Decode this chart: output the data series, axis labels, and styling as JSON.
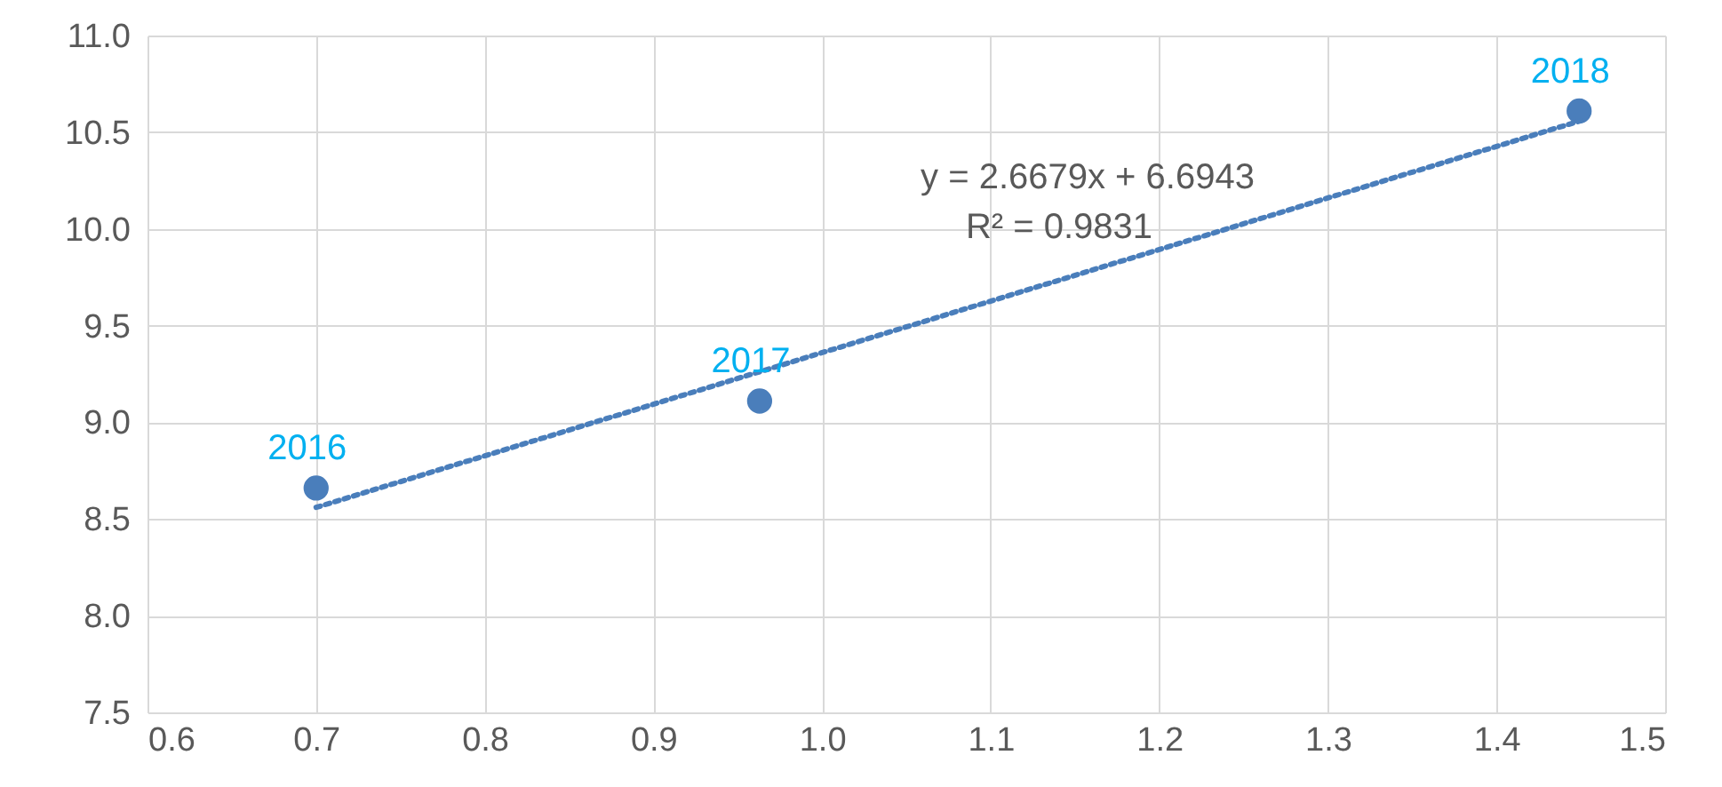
{
  "chart_data": {
    "type": "scatter",
    "series": [
      {
        "color": "#4a7ebb",
        "marker": "circle",
        "x": [
          0.7,
          0.963,
          1.449
        ],
        "values": [
          8.66,
          9.11,
          10.61
        ]
      },
      {
        "type": "line",
        "color": "#4a7ebb",
        "line_style": "dotted",
        "x": [
          0.7,
          1.45
        ],
        "values": [
          8.56,
          10.56
        ]
      }
    ],
    "annotations": [
      {
        "text": "2016",
        "x": 0.7,
        "y": 8.66
      },
      {
        "text": "2017",
        "x": 0.963,
        "y": 9.11
      },
      {
        "text": "2018",
        "x": 1.449,
        "y": 10.61
      },
      "y = 2.6679x + 6.6943",
      "R² = 0.9831"
    ],
    "xlim": [
      0.6,
      1.5
    ],
    "xticks": [
      0.6,
      0.7,
      0.8,
      0.9,
      {
        "value": 1,
        "label": "1.0"
      },
      1.1,
      1.2,
      1.3,
      1.4,
      1.5
    ],
    "ylim": [
      7.5,
      11.0
    ],
    "yticks": [
      7.5,
      {
        "value": 8,
        "label": "8.0"
      },
      8.5,
      {
        "value": 9,
        "label": "9.0"
      },
      9.5,
      {
        "value": 10,
        "label": "10.0"
      },
      10.5,
      {
        "value": 11,
        "label": "11.0"
      }
    ],
    "grid": true
  }
}
